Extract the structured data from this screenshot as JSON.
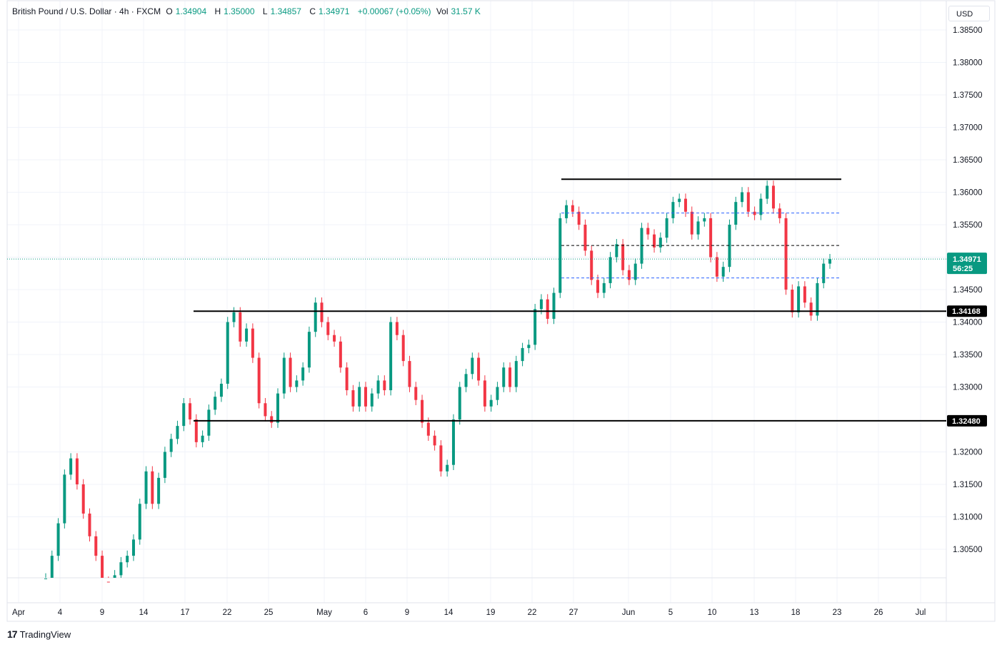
{
  "header": {
    "symbol": "British Pound / U.S. Dollar · 4h · FXCM",
    "open_label": "O",
    "open": "1.34904",
    "high_label": "H",
    "high": "1.35000",
    "low_label": "L",
    "low": "1.34857",
    "close_label": "C",
    "close": "1.34971",
    "change": "+0.00067 (+0.05%)",
    "vol_label": "Vol",
    "vol": "31.57 K"
  },
  "currency": "USD",
  "footer": {
    "brand": "TradingView"
  },
  "colors": {
    "up": "#089981",
    "down": "#f23645",
    "grid": "#f0f3fa",
    "support": "#000000",
    "blue_dash": "#2962ff",
    "last_price": "#089981"
  },
  "chart_data": {
    "type": "candlestick",
    "ylim": [
      1.3015,
      1.3895
    ],
    "yticks": [
      "1.38500",
      "1.38000",
      "1.37500",
      "1.37000",
      "1.36500",
      "1.36000",
      "1.35500",
      "1.35000",
      "1.34500",
      "1.34000",
      "1.33500",
      "1.33000",
      "1.32000",
      "1.31500",
      "1.31000",
      "1.30500"
    ],
    "xticks": [
      "Apr",
      "4",
      "9",
      "14",
      "17",
      "22",
      "25",
      "May",
      "6",
      "9",
      "14",
      "19",
      "22",
      "27",
      "Jun",
      "5",
      "10",
      "13",
      "18",
      "23",
      "26",
      "Jul"
    ],
    "last_price": {
      "value": "1.34971",
      "countdown": "56:25"
    },
    "horizontal_levels": [
      {
        "value": 1.362,
        "style": "solid",
        "from": "27",
        "to": "18"
      },
      {
        "value": 1.3568,
        "style": "blue-dashed",
        "from": "27",
        "to": "18"
      },
      {
        "value": 1.3518,
        "style": "black-dashed",
        "from": "27",
        "to": "18"
      },
      {
        "value": 1.3468,
        "style": "blue-dashed",
        "from": "27",
        "to": "18"
      },
      {
        "value": 1.34168,
        "label": "1.34168",
        "style": "solid",
        "from": "17"
      },
      {
        "value": 1.3248,
        "label": "1.32480",
        "style": "solid",
        "from": "17"
      }
    ],
    "closes": [
      1.3005,
      1.304,
      1.309,
      1.3165,
      1.319,
      1.315,
      1.3105,
      1.307,
      1.304,
      1.3,
      1.299,
      1.301,
      1.303,
      1.304,
      1.3065,
      1.312,
      1.317,
      1.312,
      1.316,
      1.32,
      1.322,
      1.324,
      1.3275,
      1.325,
      1.3215,
      1.3225,
      1.3265,
      1.3285,
      1.3305,
      1.34,
      1.3415,
      1.337,
      1.339,
      1.3345,
      1.3275,
      1.3255,
      1.3245,
      1.329,
      1.3345,
      1.33,
      1.331,
      1.333,
      1.3385,
      1.343,
      1.34,
      1.338,
      1.337,
      1.333,
      1.3295,
      1.327,
      1.33,
      1.327,
      1.329,
      1.331,
      1.3295,
      1.34,
      1.338,
      1.334,
      1.33,
      1.328,
      1.3245,
      1.3225,
      1.321,
      1.317,
      1.318,
      1.325,
      1.33,
      1.332,
      1.3345,
      1.331,
      1.327,
      1.328,
      1.33,
      1.333,
      1.33,
      1.334,
      1.336,
      1.3365,
      1.342,
      1.3435,
      1.3405,
      1.3445,
      1.356,
      1.358,
      1.357,
      1.355,
      1.351,
      1.3465,
      1.3445,
      1.346,
      1.35,
      1.352,
      1.348,
      1.3465,
      1.349,
      1.3545,
      1.3535,
      1.3515,
      1.353,
      1.356,
      1.3585,
      1.359,
      1.357,
      1.3535,
      1.3555,
      1.356,
      1.35,
      1.347,
      1.3485,
      1.355,
      1.3585,
      1.36,
      1.357,
      1.3565,
      1.359,
      1.361,
      1.3575,
      1.356,
      1.345,
      1.3415,
      1.3455,
      1.343,
      1.341,
      1.346,
      1.349,
      1.3497
    ]
  }
}
